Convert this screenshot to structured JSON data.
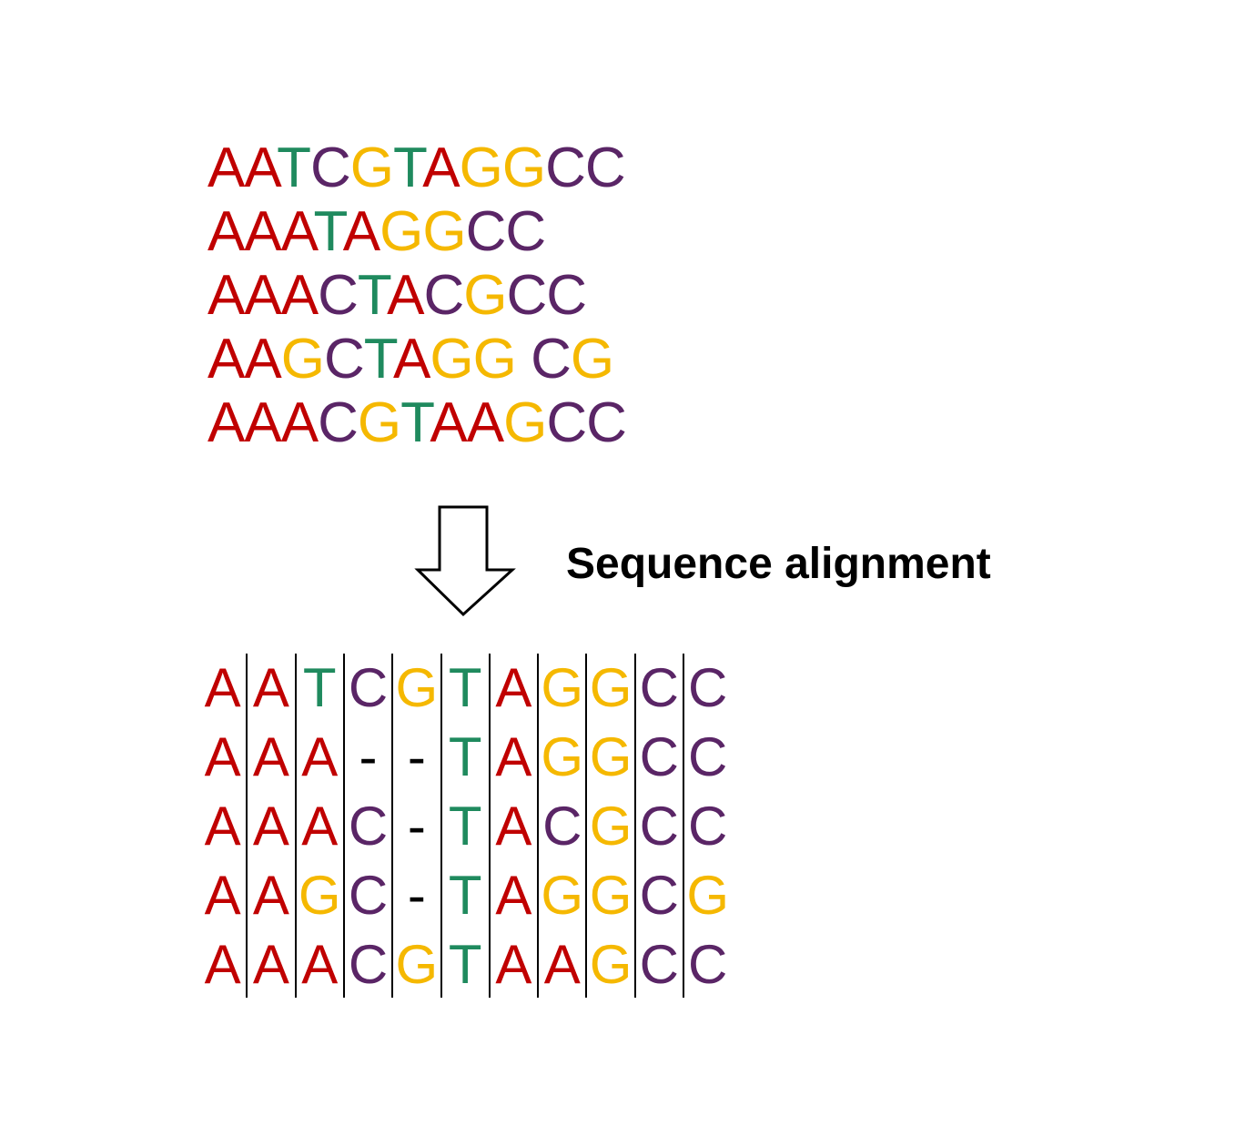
{
  "colors": {
    "A": "#c00000",
    "T": "#1f8a5e",
    "C": "#5a2566",
    "G": "#f5b800",
    "-": "#000000"
  },
  "raw_sequences": [
    "AATCGTAGGCC",
    "AAATAGGCC",
    "AAACTACGCC",
    "AAGCTAGG CG",
    "AAACGTAAGCC"
  ],
  "caption": "Sequence alignment",
  "aligned_sequences": [
    "AATCGTAGGCC",
    "AAA--TAGGCC",
    "AAAC-TACGCC",
    "AAGC-TAGGCG",
    "AAACGTAAGCC"
  ]
}
